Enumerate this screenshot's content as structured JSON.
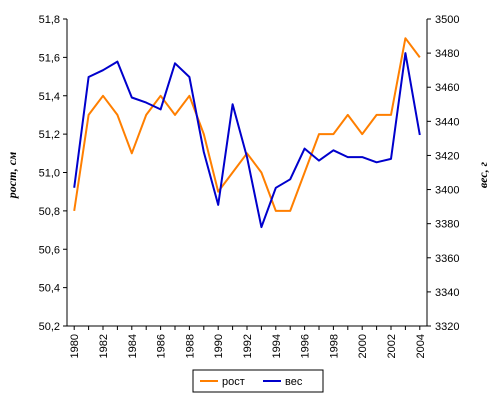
{
  "chart_data": {
    "type": "line",
    "x": [
      1980,
      1981,
      1982,
      1983,
      1984,
      1985,
      1986,
      1987,
      1988,
      1989,
      1990,
      1991,
      1992,
      1993,
      1994,
      1995,
      1996,
      1997,
      1998,
      1999,
      2000,
      2001,
      2002,
      2003,
      2004
    ],
    "x_tick_labels": [
      "1980",
      "1982",
      "1984",
      "1986",
      "1988",
      "1990",
      "1992",
      "1994",
      "1996",
      "1998",
      "2000",
      "2002",
      "2004"
    ],
    "y_left": {
      "label": "рост, см",
      "ylim": [
        50.2,
        51.8
      ],
      "tick_labels": [
        "50,2",
        "50,4",
        "50,6",
        "50,8",
        "51,0",
        "51,2",
        "51,4",
        "51,6",
        "51,8"
      ]
    },
    "y_right": {
      "label": "вес, г",
      "ylim": [
        3320,
        3500
      ],
      "tick_labels": [
        "3320",
        "3340",
        "3360",
        "3380",
        "3400",
        "3420",
        "3440",
        "3460",
        "3480",
        "3500"
      ]
    },
    "series": [
      {
        "name": "рост",
        "axis": "left",
        "color": "#FF7F00",
        "values": [
          50.8,
          51.3,
          51.4,
          51.3,
          51.1,
          51.3,
          51.4,
          51.3,
          51.4,
          51.2,
          50.9,
          51.0,
          51.1,
          51.0,
          50.8,
          50.8,
          51.0,
          51.2,
          51.2,
          51.3,
          51.2,
          51.3,
          51.3,
          51.7,
          51.6
        ]
      },
      {
        "name": "вес",
        "axis": "right",
        "color": "#0000CC",
        "values": [
          3401,
          3466,
          3470,
          3475,
          3454,
          3451,
          3447,
          3474,
          3466,
          3422,
          3391,
          3450,
          3419,
          3378,
          3401,
          3406,
          3424,
          3417,
          3423,
          3419,
          3419,
          3416,
          3418,
          3480,
          3432
        ]
      }
    ],
    "grid": false,
    "legend": "bottom"
  }
}
